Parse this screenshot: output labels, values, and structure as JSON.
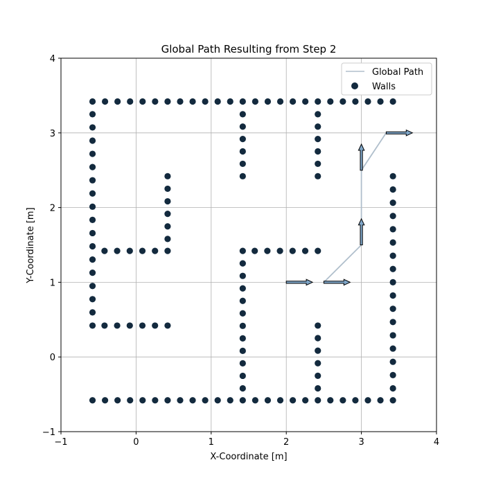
{
  "chart_data": {
    "type": "scatter",
    "title": "Global Path Resulting from Step 2",
    "xlabel": "X-Coordinate [m]",
    "ylabel": "Y-Coordinate [m]",
    "xlim": [
      -1,
      4
    ],
    "ylim": [
      -1,
      4
    ],
    "xticks": [
      -1,
      0,
      1,
      2,
      3,
      4
    ],
    "yticks": [
      -1,
      0,
      1,
      2,
      3,
      4
    ],
    "grid": true,
    "legend_position": "top-right",
    "colors": {
      "walls": "#132a3e",
      "path": "#b0bfcc",
      "arrow_fill": "#7fa6c8",
      "arrow_edge": "#000000",
      "grid": "#b0b0b0"
    },
    "series": [
      {
        "name": "Global Path",
        "kind": "line",
        "points": [
          [
            2.5,
            1.0
          ],
          [
            3.0,
            1.5
          ],
          [
            3.0,
            2.5
          ],
          [
            3.33,
            3.0
          ]
        ]
      },
      {
        "name": "Walls",
        "kind": "scatter",
        "segments": [
          {
            "orientation": "h",
            "y": 3.42,
            "x_start": -0.58,
            "x_end": 3.42,
            "count": 25
          },
          {
            "orientation": "h",
            "y": -0.58,
            "x_start": -0.58,
            "x_end": 3.42,
            "count": 25
          },
          {
            "orientation": "v",
            "x": -0.58,
            "y_start": 0.42,
            "y_end": 3.25,
            "count": 17
          },
          {
            "orientation": "v",
            "x": 3.42,
            "y_start": -0.42,
            "y_end": 2.42,
            "count": 17
          },
          {
            "orientation": "h",
            "y": 1.42,
            "x_start": -0.42,
            "x_end": 0.42,
            "count": 6
          },
          {
            "orientation": "h",
            "y": 0.42,
            "x_start": -0.42,
            "x_end": 0.42,
            "count": 6
          },
          {
            "orientation": "v",
            "x": 0.42,
            "y_start": 1.58,
            "y_end": 2.42,
            "count": 6
          },
          {
            "orientation": "v",
            "x": 1.42,
            "y_start": 2.42,
            "y_end": 3.25,
            "count": 6
          },
          {
            "orientation": "v",
            "x": 2.42,
            "y_start": 2.42,
            "y_end": 3.25,
            "count": 6
          },
          {
            "orientation": "v",
            "x": 1.42,
            "y_start": -0.42,
            "y_end": 1.42,
            "count": 12
          },
          {
            "orientation": "h",
            "y": 1.42,
            "x_start": 1.58,
            "x_end": 2.42,
            "count": 6
          },
          {
            "orientation": "v",
            "x": 2.42,
            "y_start": -0.42,
            "y_end": 0.42,
            "count": 6
          }
        ]
      }
    ],
    "pose_arrows": [
      {
        "x": 2.0,
        "y": 1.0,
        "dx": 0.35,
        "dy": 0.0
      },
      {
        "x": 2.5,
        "y": 1.0,
        "dx": 0.35,
        "dy": 0.0
      },
      {
        "x": 3.0,
        "y": 1.5,
        "dx": 0.0,
        "dy": 0.35
      },
      {
        "x": 3.0,
        "y": 2.5,
        "dx": 0.0,
        "dy": 0.35
      },
      {
        "x": 3.33,
        "y": 3.0,
        "dx": 0.35,
        "dy": 0.0
      }
    ]
  }
}
